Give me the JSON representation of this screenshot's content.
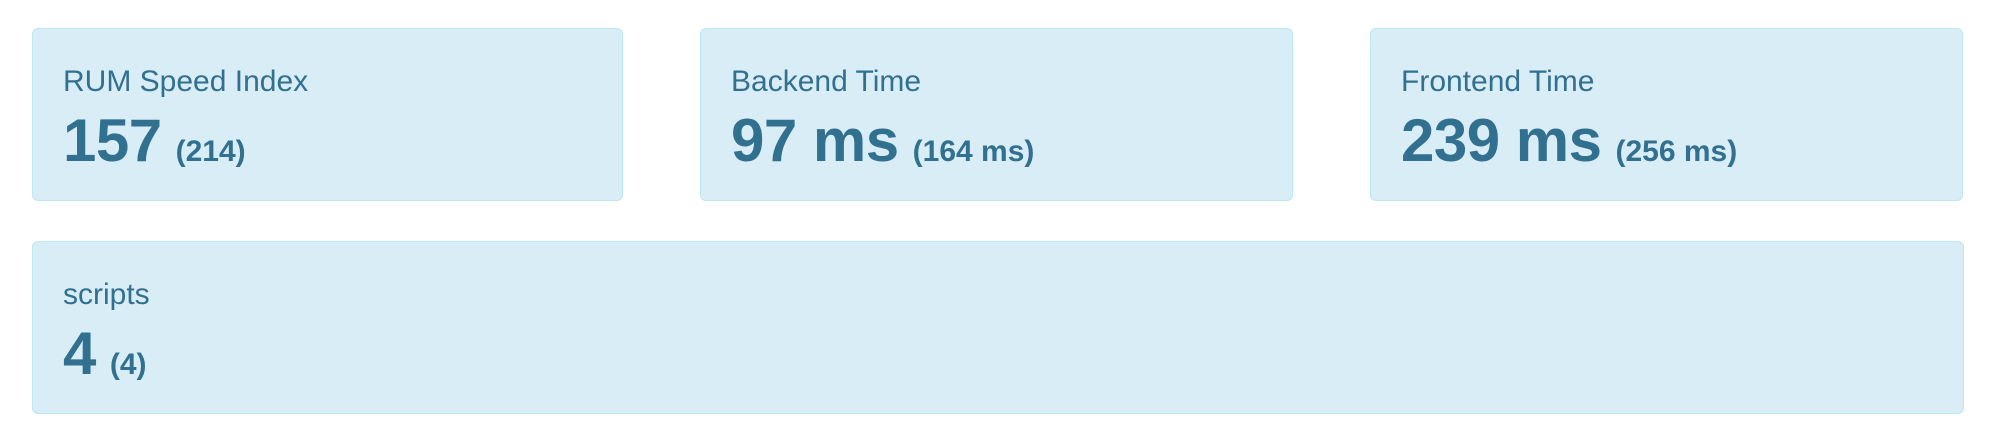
{
  "metrics": [
    {
      "label": "RUM Speed Index",
      "value": "157",
      "reference": "(214)"
    },
    {
      "label": "Backend Time",
      "value": "97 ms",
      "reference": "(164 ms)"
    },
    {
      "label": "Frontend Time",
      "value": "239 ms",
      "reference": "(256 ms)"
    },
    {
      "label": "scripts",
      "value": "4",
      "reference": "(4)"
    }
  ],
  "colors": {
    "card_background": "#d9edf7",
    "card_border": "#bce8f1",
    "text": "#31708f"
  }
}
